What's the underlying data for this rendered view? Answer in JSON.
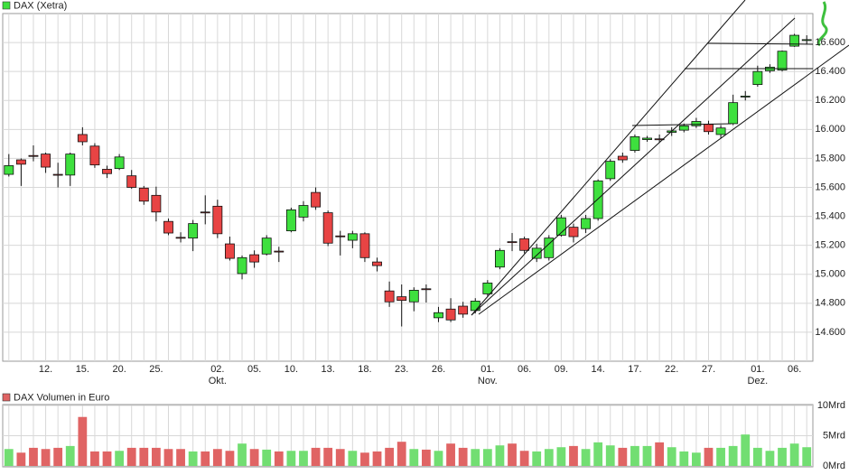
{
  "chart_data": [
    {
      "type": "candlestick",
      "title": "DAX (Xetra)",
      "categories": [
        null,
        null,
        null,
        "12.",
        null,
        null,
        "15.",
        null,
        null,
        "20.",
        null,
        null,
        "25.",
        null,
        null,
        null,
        null,
        "02.",
        null,
        null,
        "05.",
        null,
        null,
        "10.",
        null,
        null,
        "13.",
        null,
        null,
        "18.",
        null,
        null,
        "23.",
        null,
        null,
        "26.",
        null,
        null,
        null,
        "01.",
        null,
        null,
        "06.",
        null,
        null,
        "09.",
        null,
        null,
        "14.",
        null,
        null,
        "17.",
        null,
        null,
        "22.",
        null,
        null,
        "27.",
        null,
        null,
        null,
        "01.",
        null,
        null,
        "06.",
        null
      ],
      "month_labels": [
        null,
        null,
        null,
        null,
        null,
        null,
        null,
        null,
        null,
        null,
        null,
        null,
        null,
        null,
        null,
        null,
        null,
        "Okt.",
        null,
        null,
        null,
        null,
        null,
        null,
        null,
        null,
        null,
        null,
        null,
        null,
        null,
        null,
        null,
        null,
        null,
        null,
        null,
        null,
        null,
        "Nov.",
        null,
        null,
        null,
        null,
        null,
        null,
        null,
        null,
        null,
        null,
        null,
        null,
        null,
        null,
        null,
        null,
        null,
        null,
        null,
        null,
        null,
        "Dez.",
        null,
        null,
        null,
        null,
        null
      ],
      "open": [
        15690,
        15790,
        15820,
        15830,
        15690,
        15685,
        15965,
        15885,
        15725,
        15730,
        15680,
        15595,
        15545,
        15365,
        15255,
        15250,
        15430,
        15470,
        15210,
        15005,
        15135,
        15140,
        15160,
        15300,
        15395,
        15565,
        15425,
        15265,
        15235,
        15280,
        15085,
        14885,
        14845,
        14810,
        14900,
        14700,
        14760,
        14780,
        14750,
        14865,
        15050,
        15225,
        15245,
        15110,
        15115,
        15270,
        15325,
        15315,
        15385,
        15660,
        15815,
        15855,
        15930,
        15935,
        15980,
        15995,
        16025,
        16035,
        15965,
        16040,
        16225,
        16310,
        16405,
        16410,
        16575,
        16620
      ],
      "high": [
        15830,
        15800,
        15890,
        15840,
        15770,
        15840,
        16015,
        15905,
        15750,
        15830,
        15720,
        15610,
        15605,
        15385,
        15290,
        15375,
        15545,
        15515,
        15260,
        15130,
        15165,
        15270,
        15190,
        15460,
        15505,
        15600,
        15440,
        15300,
        15300,
        15290,
        15115,
        14950,
        14930,
        14910,
        14930,
        14775,
        14835,
        14810,
        14835,
        14960,
        15180,
        15285,
        15260,
        15210,
        15270,
        15410,
        15350,
        15410,
        15655,
        15795,
        15840,
        15965,
        15955,
        15965,
        16015,
        16040,
        16080,
        16060,
        16030,
        16240,
        16265,
        16440,
        16450,
        16545,
        16660,
        16650
      ],
      "low": [
        15675,
        15610,
        15780,
        15700,
        15600,
        15610,
        15890,
        15735,
        15665,
        15720,
        15590,
        15480,
        15365,
        15270,
        15220,
        15160,
        15345,
        15250,
        15095,
        14965,
        15045,
        15130,
        15085,
        15290,
        15365,
        15445,
        15195,
        15130,
        15180,
        15085,
        15020,
        14775,
        14640,
        14745,
        14805,
        14670,
        14670,
        14700,
        14730,
        14850,
        15035,
        15160,
        15145,
        15085,
        15095,
        15260,
        15220,
        15285,
        15370,
        15645,
        15770,
        15840,
        15915,
        15910,
        15955,
        15980,
        16010,
        15965,
        15940,
        16030,
        16200,
        16295,
        16390,
        16400,
        16570,
        16590
      ],
      "close": [
        15750,
        15760,
        15815,
        15740,
        15685,
        15830,
        15915,
        15755,
        15695,
        15810,
        15600,
        15505,
        15430,
        15285,
        15250,
        15350,
        15425,
        15280,
        15110,
        15115,
        15085,
        15250,
        15155,
        15445,
        15475,
        15465,
        15215,
        15260,
        15280,
        15115,
        15060,
        14810,
        14820,
        14890,
        14895,
        14735,
        14685,
        14725,
        14815,
        14940,
        15165,
        15220,
        15165,
        15180,
        15250,
        15390,
        15260,
        15385,
        15645,
        15780,
        15790,
        15950,
        15940,
        15930,
        15990,
        16025,
        16055,
        15985,
        16010,
        16185,
        16230,
        16400,
        16430,
        16540,
        16650,
        16620
      ],
      "up_color": "#3ee03e",
      "down_color": "#e84444",
      "ylim": [
        14400,
        16800
      ],
      "yticks": [
        {
          "value": 14600,
          "label": "14.600"
        },
        {
          "value": 14800,
          "label": "14.800"
        },
        {
          "value": 15000,
          "label": "15.000"
        },
        {
          "value": 15200,
          "label": "15.200"
        },
        {
          "value": 15400,
          "label": "15.400"
        },
        {
          "value": 15600,
          "label": "15.600"
        },
        {
          "value": 15800,
          "label": "15.800"
        },
        {
          "value": 16000,
          "label": "16.000"
        },
        {
          "value": 16200,
          "label": "16.200"
        },
        {
          "value": 16400,
          "label": "16.400"
        },
        {
          "value": 16600,
          "label": "16.600"
        }
      ],
      "grid": true
    },
    {
      "type": "bar",
      "title": "DAX Volumen in Euro",
      "values": [
        2.8,
        2.2,
        3.0,
        2.8,
        3.0,
        3.3,
        8.1,
        2.4,
        2.4,
        2.5,
        3.0,
        3.0,
        3.0,
        2.8,
        2.8,
        2.4,
        2.4,
        2.8,
        2.5,
        3.7,
        2.8,
        2.7,
        2.4,
        2.5,
        2.5,
        3.0,
        3.0,
        2.8,
        2.5,
        2.2,
        2.4,
        3.0,
        4.0,
        2.8,
        2.7,
        2.5,
        3.7,
        3.0,
        2.8,
        2.8,
        3.4,
        3.7,
        2.5,
        2.4,
        2.8,
        3.1,
        3.3,
        2.8,
        3.9,
        3.4,
        3.0,
        3.3,
        3.3,
        3.9,
        3.1,
        2.4,
        2.2,
        3.0,
        3.0,
        3.3,
        5.2,
        3.0,
        2.5,
        3.0,
        3.7,
        3.1
      ],
      "up_color": "#72de72",
      "down_color": "#e06464",
      "ylim": [
        0,
        10
      ],
      "yticks": [
        {
          "value": 0,
          "label": "0Mrd"
        },
        {
          "value": 5,
          "label": "5Mrd"
        },
        {
          "value": 10,
          "label": "10Mrd"
        }
      ],
      "grid": true
    }
  ]
}
